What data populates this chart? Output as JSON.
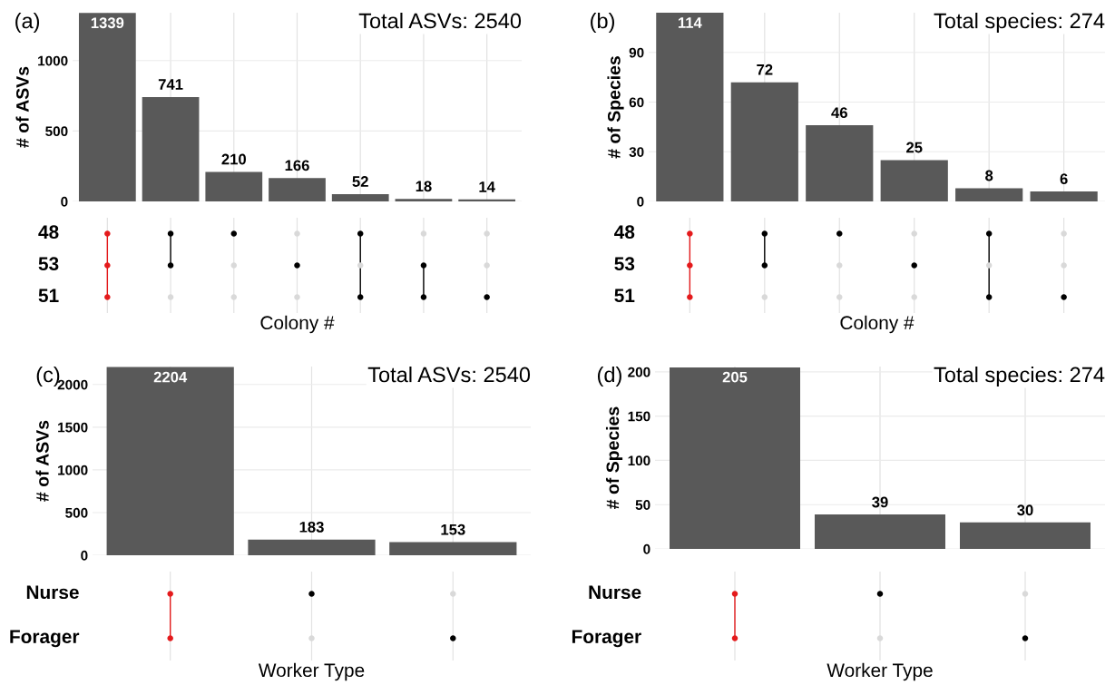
{
  "chart_data": [
    {
      "type": "bar",
      "title": "(a)",
      "ylabel": "# of ASVs",
      "categories": [
        null,
        null,
        null,
        null,
        null,
        null,
        null
      ],
      "values": [
        1339,
        741,
        210,
        166,
        52,
        18,
        14
      ],
      "color": "#595959",
      "ylim": [
        0,
        1340
      ],
      "yticks": [
        0,
        500,
        1000
      ],
      "grid": true,
      "data_labels": true,
      "annotations": [
        "Total ASVs: 2540"
      ]
    },
    {
      "type": "other",
      "xlabel": "Colony #",
      "series": [
        {
          "name": "48",
          "values": [
            null,
            null,
            null,
            null,
            null,
            null,
            null
          ],
          "colors": [
            "#e41a1c",
            "#000000",
            "#000000",
            "#d9d9d9",
            "#000000",
            "#d9d9d9",
            "#d9d9d9"
          ]
        },
        {
          "name": "53",
          "values": [
            null,
            null,
            null,
            null,
            null,
            null,
            null
          ],
          "colors": [
            "#e41a1c",
            "#000000",
            "#d9d9d9",
            "#000000",
            "#d9d9d9",
            "#000000",
            "#d9d9d9"
          ]
        },
        {
          "name": "51",
          "values": [
            null,
            null,
            null,
            null,
            null,
            null,
            null
          ],
          "colors": [
            "#e41a1c",
            "#d9d9d9",
            "#d9d9d9",
            "#d9d9d9",
            "#000000",
            "#000000",
            "#000000"
          ]
        }
      ]
    },
    {
      "type": "bar",
      "title": "(b)",
      "ylabel": "# of Species",
      "categories": [
        null,
        null,
        null,
        null,
        null,
        null
      ],
      "values": [
        114,
        72,
        46,
        25,
        8,
        6
      ],
      "color": "#595959",
      "ylim": [
        0,
        114
      ],
      "yticks": [
        0,
        30,
        60,
        90
      ],
      "grid": true,
      "data_labels": true,
      "annotations": [
        "Total species: 274"
      ]
    },
    {
      "type": "other",
      "xlabel": "Colony #",
      "series": [
        {
          "name": "48",
          "values": [
            null,
            null,
            null,
            null,
            null,
            null
          ],
          "colors": [
            "#e41a1c",
            "#000000",
            "#000000",
            "#d9d9d9",
            "#000000",
            "#d9d9d9"
          ]
        },
        {
          "name": "53",
          "values": [
            null,
            null,
            null,
            null,
            null,
            null
          ],
          "colors": [
            "#e41a1c",
            "#000000",
            "#d9d9d9",
            "#000000",
            "#d9d9d9",
            "#d9d9d9"
          ]
        },
        {
          "name": "51",
          "values": [
            null,
            null,
            null,
            null,
            null,
            null
          ],
          "colors": [
            "#e41a1c",
            "#d9d9d9",
            "#d9d9d9",
            "#d9d9d9",
            "#000000",
            "#000000"
          ]
        }
      ]
    },
    {
      "type": "bar",
      "title": "(c)",
      "ylabel": "# of ASVs",
      "categories": [
        null,
        null,
        null
      ],
      "values": [
        2204,
        183,
        153
      ],
      "color": "#595959",
      "ylim": [
        0,
        2210
      ],
      "yticks": [
        0,
        500,
        1000,
        1500,
        2000
      ],
      "grid": true,
      "data_labels": true,
      "annotations": [
        "Total ASVs: 2540"
      ]
    },
    {
      "type": "other",
      "xlabel": "Worker Type",
      "series": [
        {
          "name": "Nurse",
          "values": [
            null,
            null,
            null
          ],
          "colors": [
            "#e41a1c",
            "#000000",
            "#d9d9d9"
          ]
        },
        {
          "name": "Forager",
          "values": [
            null,
            null,
            null
          ],
          "colors": [
            "#e41a1c",
            "#d9d9d9",
            "#000000"
          ]
        }
      ]
    },
    {
      "type": "bar",
      "title": "(d)",
      "ylabel": "# of Species",
      "categories": [
        null,
        null,
        null
      ],
      "values": [
        205,
        39,
        30
      ],
      "color": "#595959",
      "ylim": [
        0,
        206
      ],
      "yticks": [
        0,
        50,
        100,
        150,
        200
      ],
      "grid": true,
      "data_labels": true,
      "annotations": [
        "Total species: 274"
      ]
    },
    {
      "type": "other",
      "xlabel": "Worker Type",
      "series": [
        {
          "name": "Nurse",
          "values": [
            null,
            null,
            null
          ],
          "colors": [
            "#e41a1c",
            "#000000",
            "#d9d9d9"
          ]
        },
        {
          "name": "Forager",
          "values": [
            null,
            null,
            null
          ],
          "colors": [
            "#e41a1c",
            "#d9d9d9",
            "#000000"
          ]
        }
      ]
    }
  ]
}
